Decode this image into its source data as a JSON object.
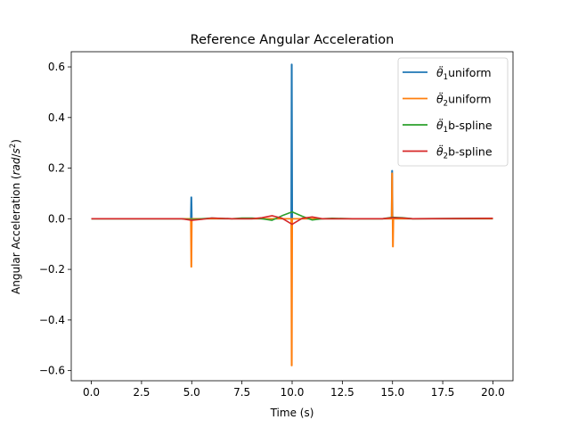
{
  "chart_data": {
    "type": "line",
    "title": "Reference Angular Acceleration",
    "xlabel": "Time (s)",
    "ylabel": "Angular Acceleration (rad/s²)",
    "ylabel_parts": {
      "main": "Angular Acceleration ",
      "unit_open": "(",
      "unit_italic": "rad",
      "unit_slash": "/",
      "unit_s": "s",
      "unit_exp": "2",
      "unit_close": ")"
    },
    "xlim": [
      -1.0,
      21.0
    ],
    "ylim": [
      -0.64,
      0.66
    ],
    "xticks": [
      0.0,
      2.5,
      5.0,
      7.5,
      10.0,
      12.5,
      15.0,
      17.5,
      20.0
    ],
    "xtick_labels": [
      "0.0",
      "2.5",
      "5.0",
      "7.5",
      "10.0",
      "12.5",
      "15.0",
      "17.5",
      "20.0"
    ],
    "yticks": [
      -0.6,
      -0.4,
      -0.2,
      0.0,
      0.2,
      0.4,
      0.6
    ],
    "ytick_labels": [
      "−0.6",
      "−0.4",
      "−0.2",
      "0.0",
      "0.2",
      "0.4",
      "0.6"
    ],
    "grid": false,
    "legend_position": "top-right",
    "series": [
      {
        "legend_symbol": "θ̈",
        "legend_sub": "1",
        "legend_suffix": "uniform",
        "color": "#1f77b4",
        "points": [
          [
            0,
            0
          ],
          [
            4.95,
            0
          ],
          [
            4.97,
            0.085
          ],
          [
            4.99,
            0.085
          ],
          [
            5.01,
            0
          ],
          [
            9.95,
            0
          ],
          [
            9.97,
            0.61
          ],
          [
            9.99,
            0.61
          ],
          [
            10.01,
            0
          ],
          [
            14.95,
            0
          ],
          [
            14.97,
            0.19
          ],
          [
            14.99,
            0.19
          ],
          [
            15.01,
            0
          ],
          [
            20,
            0
          ]
        ]
      },
      {
        "legend_symbol": "θ̈",
        "legend_sub": "2",
        "legend_suffix": "uniform",
        "color": "#ff7f0e",
        "points": [
          [
            0,
            0
          ],
          [
            4.95,
            0
          ],
          [
            4.97,
            -0.19
          ],
          [
            4.99,
            -0.19
          ],
          [
            5.01,
            0
          ],
          [
            9.95,
            0
          ],
          [
            9.97,
            -0.58
          ],
          [
            9.99,
            -0.58
          ],
          [
            10.01,
            0
          ],
          [
            14.95,
            0
          ],
          [
            14.97,
            0.18
          ],
          [
            14.99,
            0.18
          ],
          [
            15.0,
            0
          ],
          [
            15.01,
            -0.11
          ],
          [
            15.03,
            -0.11
          ],
          [
            15.05,
            0
          ],
          [
            20,
            0
          ]
        ]
      },
      {
        "legend_symbol": "θ̈",
        "legend_sub": "1",
        "legend_suffix": "b-spline",
        "color": "#2ca02c",
        "points": [
          [
            0,
            0
          ],
          [
            4.5,
            0
          ],
          [
            5.0,
            -0.003
          ],
          [
            5.5,
            0
          ],
          [
            6.0,
            0.003
          ],
          [
            7.0,
            0
          ],
          [
            7.5,
            0.003
          ],
          [
            8.0,
            0.003
          ],
          [
            8.5,
            0
          ],
          [
            9.0,
            -0.006
          ],
          [
            9.5,
            0.012
          ],
          [
            10.0,
            0.027
          ],
          [
            10.5,
            0.01
          ],
          [
            11.0,
            -0.005
          ],
          [
            11.5,
            0
          ],
          [
            12.0,
            0.002
          ],
          [
            13.0,
            0
          ],
          [
            14.5,
            0
          ],
          [
            15.0,
            0.006
          ],
          [
            15.5,
            0.004
          ],
          [
            16.0,
            0
          ],
          [
            20,
            0.002
          ]
        ]
      },
      {
        "legend_symbol": "θ̈",
        "legend_sub": "2",
        "legend_suffix": "b-spline",
        "color": "#d62728",
        "points": [
          [
            0,
            0
          ],
          [
            4.5,
            0
          ],
          [
            5.0,
            -0.006
          ],
          [
            5.5,
            -0.002
          ],
          [
            6.0,
            0.003
          ],
          [
            7.0,
            0
          ],
          [
            8.0,
            0
          ],
          [
            8.5,
            0.004
          ],
          [
            9.0,
            0.012
          ],
          [
            9.5,
            0.002
          ],
          [
            10.0,
            -0.022
          ],
          [
            10.5,
            0.002
          ],
          [
            11.0,
            0.007
          ],
          [
            11.5,
            0
          ],
          [
            13.0,
            0
          ],
          [
            14.5,
            0
          ],
          [
            15.0,
            0.004
          ],
          [
            15.5,
            0.003
          ],
          [
            16.0,
            0
          ],
          [
            20,
            0.002
          ]
        ]
      }
    ]
  }
}
